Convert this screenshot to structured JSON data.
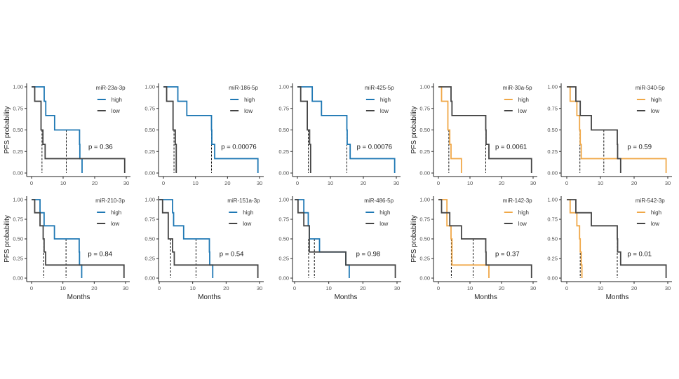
{
  "chart_data": [
    {
      "type": "line",
      "subtype": "kaplan-meier",
      "title": "miR-23a-3p",
      "xlabel": "",
      "ylabel": "PFS probability",
      "xlim": [
        0,
        30
      ],
      "ylim": [
        0,
        1
      ],
      "xticks": [
        0,
        10,
        20,
        30
      ],
      "yticks": [
        "0.00",
        "0.25",
        "0.50",
        "0.75",
        "1.00"
      ],
      "p_value": "p = 0.36",
      "palette": "blue",
      "series": [
        {
          "name": "high",
          "color": "#1f78b4",
          "steps": [
            [
              0,
              1.0
            ],
            [
              4,
              0.833
            ],
            [
              4.5,
              0.667
            ],
            [
              7.3,
              0.5
            ],
            [
              15.2,
              0.333
            ],
            [
              15.3,
              0.167
            ],
            [
              16,
              0.0
            ]
          ],
          "median": 11
        },
        {
          "name": "low",
          "color": "#444444",
          "steps": [
            [
              0,
              1.0
            ],
            [
              1,
              0.833
            ],
            [
              3,
              0.5
            ],
            [
              3.6,
              0.333
            ],
            [
              4.3,
              0.167
            ],
            [
              29.5,
              0.0
            ]
          ],
          "median": 3.3
        }
      ]
    },
    {
      "type": "line",
      "subtype": "kaplan-meier",
      "title": "miR-186-5p",
      "xlabel": "",
      "ylabel": "",
      "xlim": [
        0,
        30
      ],
      "ylim": [
        0,
        1
      ],
      "xticks": [
        0,
        10,
        20,
        30
      ],
      "yticks": [
        "0.00",
        "0.25",
        "0.50",
        "0.75",
        "1.00"
      ],
      "p_value": "p = 0.00076",
      "palette": "blue",
      "series": [
        {
          "name": "high",
          "color": "#1f78b4",
          "steps": [
            [
              0,
              1.0
            ],
            [
              4.5,
              0.833
            ],
            [
              7.3,
              0.667
            ],
            [
              15,
              0.5
            ],
            [
              15.1,
              0.333
            ],
            [
              16,
              0.167
            ],
            [
              29.5,
              0.0
            ]
          ],
          "median": 15
        },
        {
          "name": "low",
          "color": "#444444",
          "steps": [
            [
              0,
              1.0
            ],
            [
              1,
              0.833
            ],
            [
              3,
              0.5
            ],
            [
              3.7,
              0.333
            ],
            [
              4,
              0.0
            ]
          ],
          "median": 3.3
        }
      ]
    },
    {
      "type": "line",
      "subtype": "kaplan-meier",
      "title": "miR-425-5p",
      "xlabel": "",
      "ylabel": "",
      "xlim": [
        0,
        30
      ],
      "ylim": [
        0,
        1
      ],
      "xticks": [
        0,
        10,
        20,
        30
      ],
      "yticks": [
        "0.00",
        "0.25",
        "0.50",
        "0.75",
        "1.00"
      ],
      "p_value": "p = 0.00076",
      "palette": "blue",
      "series": [
        {
          "name": "high",
          "color": "#1f78b4",
          "steps": [
            [
              0,
              1.0
            ],
            [
              4.5,
              0.833
            ],
            [
              7.3,
              0.667
            ],
            [
              15,
              0.5
            ],
            [
              15.1,
              0.333
            ],
            [
              16,
              0.167
            ],
            [
              29.5,
              0.0
            ]
          ],
          "median": 15
        },
        {
          "name": "low",
          "color": "#444444",
          "steps": [
            [
              0,
              1.0
            ],
            [
              1,
              0.833
            ],
            [
              3,
              0.5
            ],
            [
              3.7,
              0.333
            ],
            [
              4,
              0.0
            ]
          ],
          "median": 3.3
        }
      ]
    },
    {
      "type": "line",
      "subtype": "kaplan-meier",
      "title": "miR-30a-5p",
      "xlabel": "",
      "ylabel": "PFS probability",
      "xlim": [
        0,
        30
      ],
      "ylim": [
        0,
        1
      ],
      "xticks": [
        0,
        10,
        20,
        30
      ],
      "yticks": [
        "0.00",
        "0.25",
        "0.50",
        "0.75",
        "1.00"
      ],
      "p_value": "p = 0.0061",
      "palette": "orange",
      "series": [
        {
          "name": "high",
          "color": "#f0a848",
          "steps": [
            [
              0,
              1.0
            ],
            [
              1,
              0.833
            ],
            [
              3,
              0.5
            ],
            [
              3.6,
              0.333
            ],
            [
              4,
              0.167
            ],
            [
              7.3,
              0.0
            ]
          ],
          "median": 3.3
        },
        {
          "name": "low",
          "color": "#444444",
          "steps": [
            [
              0,
              1.0
            ],
            [
              4,
              0.833
            ],
            [
              4.3,
              0.667
            ],
            [
              15,
              0.5
            ],
            [
              15.1,
              0.333
            ],
            [
              16,
              0.167
            ],
            [
              29.5,
              0.0
            ]
          ],
          "median": 15
        }
      ]
    },
    {
      "type": "line",
      "subtype": "kaplan-meier",
      "title": "miR-340-5p",
      "xlabel": "",
      "ylabel": "",
      "xlim": [
        0,
        30
      ],
      "ylim": [
        0,
        1
      ],
      "xticks": [
        0,
        10,
        20,
        30
      ],
      "yticks": [
        "0.00",
        "0.25",
        "0.50",
        "0.75",
        "1.00"
      ],
      "p_value": "p = 0.59",
      "palette": "orange",
      "series": [
        {
          "name": "high",
          "color": "#f0a848",
          "steps": [
            [
              0,
              1.0
            ],
            [
              1,
              0.833
            ],
            [
              3,
              0.667
            ],
            [
              3.8,
              0.5
            ],
            [
              4,
              0.333
            ],
            [
              4.3,
              0.167
            ],
            [
              29.5,
              0.0
            ]
          ],
          "median": 3.9
        },
        {
          "name": "low",
          "color": "#444444",
          "steps": [
            [
              0,
              1.0
            ],
            [
              2.7,
              0.833
            ],
            [
              4,
              0.667
            ],
            [
              7.3,
              0.5
            ],
            [
              15,
              0.333
            ],
            [
              15.1,
              0.167
            ],
            [
              16,
              0.0
            ]
          ],
          "median": 11
        }
      ]
    },
    {
      "type": "line",
      "subtype": "kaplan-meier",
      "title": "miR-210-3p",
      "xlabel": "Months",
      "ylabel": "PFS probability",
      "xlim": [
        0,
        30
      ],
      "ylim": [
        0,
        1
      ],
      "xticks": [
        0,
        10,
        20,
        30
      ],
      "yticks": [
        "0.00",
        "0.25",
        "0.50",
        "0.75",
        "1.00"
      ],
      "p_value": "p = 0.84",
      "palette": "blue",
      "series": [
        {
          "name": "high",
          "color": "#1f78b4",
          "steps": [
            [
              0,
              1.0
            ],
            [
              2.7,
              0.833
            ],
            [
              4,
              0.667
            ],
            [
              7.3,
              0.5
            ],
            [
              15.2,
              0.333
            ],
            [
              15.3,
              0.167
            ],
            [
              16,
              0.0
            ]
          ],
          "median": 11
        },
        {
          "name": "low",
          "color": "#444444",
          "steps": [
            [
              0,
              1.0
            ],
            [
              1,
              0.833
            ],
            [
              2.7,
              0.667
            ],
            [
              3.7,
              0.5
            ],
            [
              4,
              0.333
            ],
            [
              4.5,
              0.167
            ],
            [
              29.5,
              0.0
            ]
          ],
          "median": 3.9
        }
      ]
    },
    {
      "type": "line",
      "subtype": "kaplan-meier",
      "title": "miR-151a-3p",
      "xlabel": "Months",
      "ylabel": "",
      "xlim": [
        0,
        30
      ],
      "ylim": [
        0,
        1
      ],
      "xticks": [
        0,
        10,
        20,
        30
      ],
      "yticks": [
        "0.00",
        "0.25",
        "0.50",
        "0.75",
        "1.00"
      ],
      "p_value": "p = 0.54",
      "palette": "blue",
      "series": [
        {
          "name": "high",
          "color": "#1f78b4",
          "steps": [
            [
              0,
              1.0
            ],
            [
              4,
              0.833
            ],
            [
              4.3,
              0.667
            ],
            [
              7.3,
              0.5
            ],
            [
              15,
              0.333
            ],
            [
              15.1,
              0.167
            ],
            [
              16,
              0.0
            ]
          ],
          "median": 11
        },
        {
          "name": "low",
          "color": "#444444",
          "steps": [
            [
              0,
              1.0
            ],
            [
              1,
              0.833
            ],
            [
              2.7,
              0.5
            ],
            [
              4,
              0.333
            ],
            [
              4.5,
              0.167
            ],
            [
              29.5,
              0.0
            ]
          ],
          "median": 3.4
        }
      ]
    },
    {
      "type": "line",
      "subtype": "kaplan-meier",
      "title": "miR-486-5p",
      "xlabel": "Months",
      "ylabel": "",
      "xlim": [
        0,
        30
      ],
      "ylim": [
        0,
        1
      ],
      "xticks": [
        0,
        10,
        20,
        30
      ],
      "yticks": [
        "0.00",
        "0.25",
        "0.50",
        "0.75",
        "1.00"
      ],
      "p_value": "p = 0.98",
      "palette": "blue",
      "series": [
        {
          "name": "high",
          "color": "#1f78b4",
          "steps": [
            [
              0,
              1.0
            ],
            [
              2.7,
              0.833
            ],
            [
              4,
              0.667
            ],
            [
              4.3,
              0.5
            ],
            [
              7.3,
              0.333
            ],
            [
              15,
              0.167
            ],
            [
              16,
              0.0
            ]
          ],
          "median": 5.8
        },
        {
          "name": "low",
          "color": "#444444",
          "steps": [
            [
              0,
              1.0
            ],
            [
              1,
              0.833
            ],
            [
              2.7,
              0.667
            ],
            [
              4.3,
              0.333
            ],
            [
              15,
              0.167
            ],
            [
              29.5,
              0.0
            ]
          ],
          "median": 4.1
        }
      ]
    },
    {
      "type": "line",
      "subtype": "kaplan-meier",
      "title": "miR-142-3p",
      "xlabel": "Months",
      "ylabel": "PFS probability",
      "xlim": [
        0,
        30
      ],
      "ylim": [
        0,
        1
      ],
      "xticks": [
        0,
        10,
        20,
        30
      ],
      "yticks": [
        "0.00",
        "0.25",
        "0.50",
        "0.75",
        "1.00"
      ],
      "p_value": "p = 0.37",
      "palette": "orange",
      "series": [
        {
          "name": "high",
          "color": "#f0a848",
          "steps": [
            [
              0,
              1.0
            ],
            [
              2.7,
              0.667
            ],
            [
              4,
              0.5
            ],
            [
              4.3,
              0.167
            ],
            [
              16,
              0.0
            ]
          ],
          "median": 4.1
        },
        {
          "name": "low",
          "color": "#444444",
          "steps": [
            [
              0,
              1.0
            ],
            [
              1,
              0.833
            ],
            [
              3.6,
              0.667
            ],
            [
              7.3,
              0.5
            ],
            [
              15,
              0.333
            ],
            [
              15.1,
              0.167
            ],
            [
              29.5,
              0.0
            ]
          ],
          "median": 11
        }
      ]
    },
    {
      "type": "line",
      "subtype": "kaplan-meier",
      "title": "miR-542-3p",
      "xlabel": "Months",
      "ylabel": "",
      "xlim": [
        0,
        30
      ],
      "ylim": [
        0,
        1
      ],
      "xticks": [
        0,
        10,
        20,
        30
      ],
      "yticks": [
        "0.00",
        "0.25",
        "0.50",
        "0.75",
        "1.00"
      ],
      "p_value": "p = 0.01",
      "palette": "orange",
      "series": [
        {
          "name": "high",
          "color": "#f0a848",
          "steps": [
            [
              0,
              1.0
            ],
            [
              1,
              0.833
            ],
            [
              3,
              0.667
            ],
            [
              3.8,
              0.5
            ],
            [
              4,
              0.333
            ],
            [
              4.3,
              0.167
            ],
            [
              4.5,
              0.0
            ]
          ],
          "median": 4
        },
        {
          "name": "low",
          "color": "#444444",
          "steps": [
            [
              0,
              1.0
            ],
            [
              2.7,
              0.833
            ],
            [
              7.3,
              0.667
            ],
            [
              15,
              0.5
            ],
            [
              15.1,
              0.333
            ],
            [
              16,
              0.167
            ],
            [
              29.5,
              0.0
            ]
          ],
          "median": 15
        }
      ]
    }
  ],
  "legend_labels": {
    "high": "high",
    "low": "low"
  }
}
